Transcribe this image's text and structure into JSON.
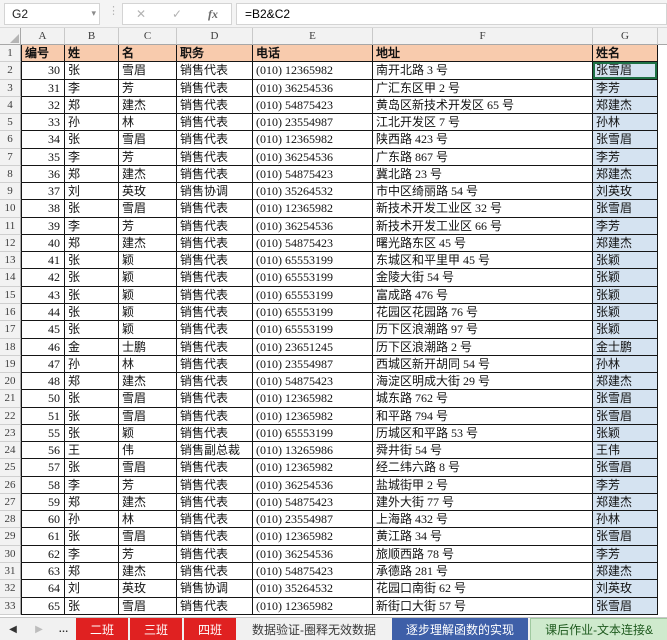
{
  "formula_bar": {
    "name_box_value": "G2",
    "cancel_label": "✕",
    "enter_label": "✓",
    "fx_label": "fx",
    "formula": "=B2&C2",
    "dropdown_glyph": "▾",
    "dots_glyph": "⋮"
  },
  "grid": {
    "column_letters": [
      "A",
      "B",
      "C",
      "D",
      "E",
      "F",
      "G"
    ],
    "row_numbers_from": 1,
    "row_numbers_to": 33
  },
  "selection": {
    "active_cell": "G2"
  },
  "table": {
    "headers": [
      "编号",
      "姓",
      "名",
      "职务",
      "电话",
      "地址",
      "姓名"
    ],
    "rows": [
      [
        30,
        "张",
        "雪眉",
        "销售代表",
        "(010) 12365982",
        "南开北路 3 号",
        "张雪眉"
      ],
      [
        31,
        "李",
        "芳",
        "销售代表",
        "(010) 36254536",
        "广汇东区甲 2 号",
        "李芳"
      ],
      [
        32,
        "郑",
        "建杰",
        "销售代表",
        "(010) 54875423",
        "黄岛区新技术开发区 65 号",
        "郑建杰"
      ],
      [
        33,
        "孙",
        "林",
        "销售代表",
        "(010) 23554987",
        "江北开发区 7 号",
        "孙林"
      ],
      [
        34,
        "张",
        "雪眉",
        "销售代表",
        "(010) 12365982",
        "陕西路 423 号",
        "张雪眉"
      ],
      [
        35,
        "李",
        "芳",
        "销售代表",
        "(010) 36254536",
        "广东路 867 号",
        "李芳"
      ],
      [
        36,
        "郑",
        "建杰",
        "销售代表",
        "(010) 54875423",
        "冀北路 23 号",
        "郑建杰"
      ],
      [
        37,
        "刘",
        "英玫",
        "销售协调",
        "(010) 35264532",
        "市中区绮丽路 54 号",
        "刘英玫"
      ],
      [
        38,
        "张",
        "雪眉",
        "销售代表",
        "(010) 12365982",
        "新技术开发工业区 32 号",
        "张雪眉"
      ],
      [
        39,
        "李",
        "芳",
        "销售代表",
        "(010) 36254536",
        "新技术开发工业区 66 号",
        "李芳"
      ],
      [
        40,
        "郑",
        "建杰",
        "销售代表",
        "(010) 54875423",
        "曙光路东区 45 号",
        "郑建杰"
      ],
      [
        41,
        "张",
        "颖",
        "销售代表",
        "(010) 65553199",
        "东城区和平里甲 45 号",
        "张颖"
      ],
      [
        42,
        "张",
        "颖",
        "销售代表",
        "(010) 65553199",
        "金陵大街 54 号",
        "张颖"
      ],
      [
        43,
        "张",
        "颖",
        "销售代表",
        "(010) 65553199",
        "富成路 476 号",
        "张颖"
      ],
      [
        44,
        "张",
        "颖",
        "销售代表",
        "(010) 65553199",
        "花园区花园路 76 号",
        "张颖"
      ],
      [
        45,
        "张",
        "颖",
        "销售代表",
        "(010) 65553199",
        "历下区浪潮路 97 号",
        "张颖"
      ],
      [
        46,
        "金",
        "士鹏",
        "销售代表",
        "(010) 23651245",
        "历下区浪潮路 2 号",
        "金士鹏"
      ],
      [
        47,
        "孙",
        "林",
        "销售代表",
        "(010) 23554987",
        "西城区新开胡同 54 号",
        "孙林"
      ],
      [
        48,
        "郑",
        "建杰",
        "销售代表",
        "(010) 54875423",
        "海淀区明成大街 29 号",
        "郑建杰"
      ],
      [
        50,
        "张",
        "雪眉",
        "销售代表",
        "(010) 12365982",
        "城东路 762 号",
        "张雪眉"
      ],
      [
        51,
        "张",
        "雪眉",
        "销售代表",
        "(010) 12365982",
        "和平路 794 号",
        "张雪眉"
      ],
      [
        55,
        "张",
        "颖",
        "销售代表",
        "(010) 65553199",
        "历城区和平路 53 号",
        "张颖"
      ],
      [
        56,
        "王",
        "伟",
        "销售副总裁",
        "(010) 13265986",
        "舜井街 54 号",
        "王伟"
      ],
      [
        57,
        "张",
        "雪眉",
        "销售代表",
        "(010) 12365982",
        "经二纬六路 8 号",
        "张雪眉"
      ],
      [
        58,
        "李",
        "芳",
        "销售代表",
        "(010) 36254536",
        "盐城街甲 2 号",
        "李芳"
      ],
      [
        59,
        "郑",
        "建杰",
        "销售代表",
        "(010) 54875423",
        "建外大街 77 号",
        "郑建杰"
      ],
      [
        60,
        "孙",
        "林",
        "销售代表",
        "(010) 23554987",
        "上海路 432 号",
        "孙林"
      ],
      [
        61,
        "张",
        "雪眉",
        "销售代表",
        "(010) 12365982",
        "黄江路 34 号",
        "张雪眉"
      ],
      [
        62,
        "李",
        "芳",
        "销售代表",
        "(010) 36254536",
        "旅顺西路 78 号",
        "李芳"
      ],
      [
        63,
        "郑",
        "建杰",
        "销售代表",
        "(010) 54875423",
        "承德路 281 号",
        "郑建杰"
      ],
      [
        64,
        "刘",
        "英玫",
        "销售协调",
        "(010) 35264532",
        "花园口南街 62 号",
        "刘英玫"
      ],
      [
        65,
        "张",
        "雪眉",
        "销售代表",
        "(010) 12365982",
        "新街口大街 57 号",
        "张雪眉"
      ]
    ]
  },
  "sheet_bar": {
    "nav_prev": "◀",
    "nav_next": "▶",
    "overflow": "…",
    "tabs": [
      {
        "label": "二班",
        "style": "red"
      },
      {
        "label": "三班",
        "style": "red"
      },
      {
        "label": "四班",
        "style": "red"
      },
      {
        "label": "数据验证-圈释无效数据",
        "style": "plain"
      },
      {
        "label": "逐步理解函数的实现",
        "style": "blue"
      },
      {
        "label": "课后作业-文本连接&",
        "style": "green"
      }
    ]
  },
  "colors": {
    "header_fill": "#F8CBAD",
    "name_column_fill": "#D5E3F1",
    "grid_border": "#151515",
    "tab_red_bg": "#E02121",
    "tab_red_text": "#FFFFFF",
    "tab_blue_bg": "#3E5FA8",
    "tab_blue_text": "#FFFFFF",
    "tab_plain_text": "#3A3A3A",
    "tab_green_bg": "#CFEACD",
    "tab_green_text": "#1F5B1F",
    "active_cell_border": "#1E7145"
  }
}
